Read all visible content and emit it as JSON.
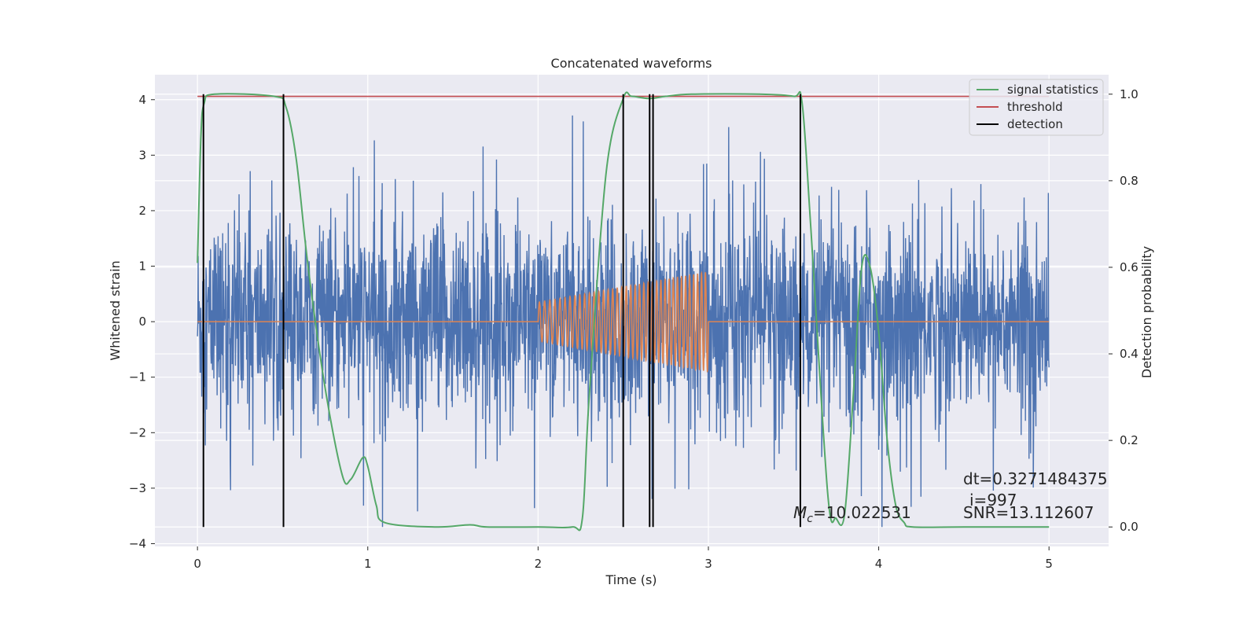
{
  "chart_data": {
    "type": "line",
    "title": "Concatenated waveforms",
    "xlabel": "Time (s)",
    "ylabel_left": "Whitened strain",
    "ylabel_right": "Detection probability",
    "xlim": [
      -0.25,
      5.35
    ],
    "ylim_left": [
      -4.05,
      4.45
    ],
    "ylim_right": [
      -0.045,
      1.045
    ],
    "x_ticks": [
      "0",
      "1",
      "2",
      "3",
      "4",
      "5"
    ],
    "x_tick_values": [
      0,
      1,
      2,
      3,
      4,
      5
    ],
    "y_left_ticks": [
      "4",
      "3",
      "2",
      "1",
      "0",
      "−1",
      "−2",
      "−3",
      "−4"
    ],
    "y_left_tick_values": [
      4,
      3,
      2,
      1,
      0,
      -1,
      -2,
      -3,
      -4
    ],
    "y_right_ticks": [
      "1.0",
      "0.8",
      "0.6",
      "0.4",
      "0.2",
      "0.0"
    ],
    "y_right_tick_values": [
      1.0,
      0.8,
      0.6,
      0.4,
      0.2,
      0.0
    ],
    "grid": true,
    "legend": {
      "placement": "top-right",
      "entries": [
        "signal statistics",
        "threshold",
        "detection"
      ]
    },
    "colors": {
      "noise": "#4c72b0",
      "waveform": "#dd8452",
      "signal_statistics": "#55a868",
      "threshold": "#c44e52",
      "detection": "#000000",
      "background": "#eaeaf2",
      "grid": "#ffffff"
    },
    "noise": {
      "x_range": [
        0,
        5
      ],
      "approx_range": [
        -3.7,
        4.1
      ]
    },
    "waveform": {
      "x_range": [
        2,
        3
      ],
      "amplitude_start": 0.35,
      "amplitude_end": 0.9,
      "cycles": 38
    },
    "threshold": {
      "x": [
        0,
        5
      ],
      "value": 0.995
    },
    "signal_statistics": {
      "x": [
        0,
        0.02,
        0.04,
        0.1,
        0.45,
        0.52,
        0.58,
        0.65,
        0.75,
        0.85,
        0.9,
        0.97,
        1.0,
        1.05,
        1.1,
        1.4,
        1.6,
        1.7,
        2.0,
        2.2,
        2.26,
        2.3,
        2.4,
        2.5,
        2.55,
        2.65,
        2.75,
        2.9,
        3.3,
        3.5,
        3.55,
        3.6,
        3.7,
        3.75,
        3.8,
        3.85,
        3.9,
        3.95,
        4.0,
        4.05,
        4.1,
        4.15,
        4.2,
        4.5,
        5.0
      ],
      "y": [
        0.61,
        0.9,
        0.98,
        1.0,
        0.995,
        0.97,
        0.85,
        0.6,
        0.32,
        0.12,
        0.11,
        0.16,
        0.14,
        0.05,
        0.01,
        0.0,
        0.005,
        0.0,
        0.0,
        0.0,
        0.02,
        0.3,
        0.82,
        0.99,
        0.995,
        0.99,
        0.995,
        1.0,
        1.0,
        0.995,
        0.98,
        0.7,
        0.08,
        0.02,
        0.03,
        0.3,
        0.6,
        0.6,
        0.45,
        0.2,
        0.05,
        0.01,
        0.0,
        0.0,
        0.0
      ]
    },
    "detections": [
      0.035,
      0.505,
      2.5,
      2.655,
      2.675,
      3.54
    ],
    "annotations": {
      "mc_symbol": "M",
      "mc_subscript": "c",
      "mc_value": "=10.022531",
      "dt": "dt=0.3271484375",
      "i": "i=997",
      "snr": "SNR=13.112607"
    }
  }
}
